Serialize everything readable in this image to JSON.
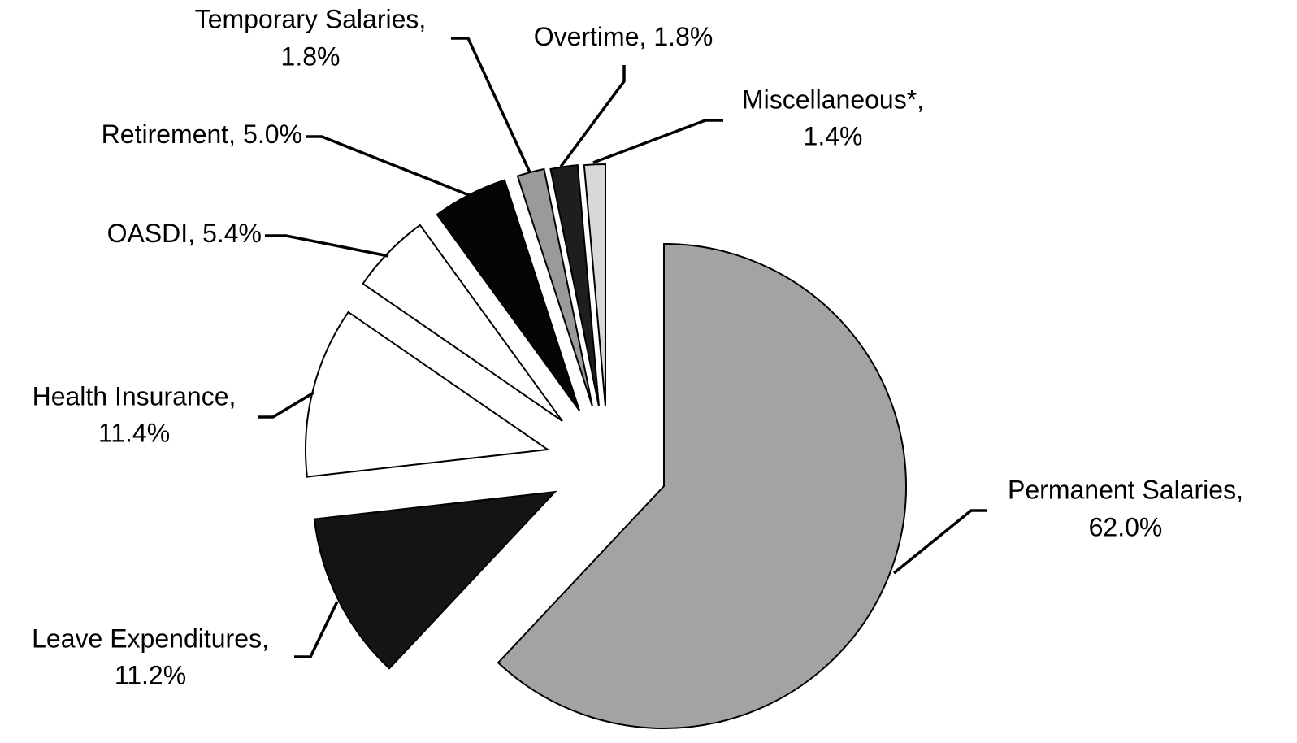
{
  "chart_data": {
    "type": "pie",
    "categories": [
      "Permanent Salaries,",
      "Leave Expenditures,",
      "Health Insurance,",
      "OASDI,",
      "Retirement,",
      "Temporary Salaries,",
      "Overtime,",
      "Miscellaneous*,"
    ],
    "values": [
      62.0,
      11.2,
      11.4,
      5.4,
      5.0,
      1.8,
      1.8,
      1.4
    ],
    "value_labels": [
      "62.0%",
      "11.2%",
      "11.4%",
      "5.4%",
      "5.0%",
      "1.8%",
      "1.8%",
      "1.4%"
    ],
    "colors": [
      "#a3a3a3",
      "#141414",
      "#ffffff",
      "#ffffff",
      "#050505",
      "#9a9a9a",
      "#1e1e1e",
      "#d8d8d8"
    ]
  }
}
